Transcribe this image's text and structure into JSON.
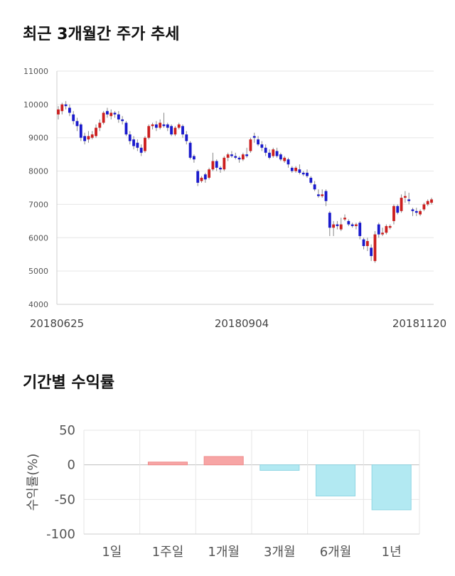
{
  "sections": {
    "price_title": "최근 3개월간 주가 추세",
    "return_title": "기간별 수익률"
  },
  "colors": {
    "up": "#cc1f1f",
    "down": "#1a1acc",
    "positive_bar": "#f7a5a5",
    "negative_bar": "#b2e9f2",
    "grid": "#e6e6e6"
  },
  "chart_data": [
    {
      "type": "candlestick",
      "title": "",
      "ylim": [
        4000,
        11000
      ],
      "yticks": [
        "11000",
        "10000",
        "9000",
        "8000",
        "7000",
        "6000",
        "5000",
        "4000"
      ],
      "xtick_labels": [
        "20180625",
        "20180904",
        "20181120"
      ],
      "grid": true,
      "candles": [
        {
          "o": 9700,
          "c": 9850,
          "h": 9950,
          "l": 9550
        },
        {
          "o": 9800,
          "c": 10000,
          "h": 10050,
          "l": 9700
        },
        {
          "o": 10000,
          "c": 9950,
          "h": 10100,
          "l": 9850
        },
        {
          "o": 9900,
          "c": 9750,
          "h": 10000,
          "l": 9650
        },
        {
          "o": 9700,
          "c": 9500,
          "h": 9800,
          "l": 9400
        },
        {
          "o": 9500,
          "c": 9350,
          "h": 9600,
          "l": 9200
        },
        {
          "o": 9400,
          "c": 9000,
          "h": 9450,
          "l": 8900
        },
        {
          "o": 9050,
          "c": 8900,
          "h": 9150,
          "l": 8800
        },
        {
          "o": 8950,
          "c": 9050,
          "h": 9200,
          "l": 8850
        },
        {
          "o": 9000,
          "c": 9100,
          "h": 9200,
          "l": 8950
        },
        {
          "o": 9050,
          "c": 9300,
          "h": 9400,
          "l": 9000
        },
        {
          "o": 9300,
          "c": 9450,
          "h": 9550,
          "l": 9200
        },
        {
          "o": 9450,
          "c": 9750,
          "h": 9800,
          "l": 9400
        },
        {
          "o": 9800,
          "c": 9700,
          "h": 9900,
          "l": 9600
        },
        {
          "o": 9650,
          "c": 9750,
          "h": 9850,
          "l": 9550
        },
        {
          "o": 9750,
          "c": 9700,
          "h": 9800,
          "l": 9600
        },
        {
          "o": 9700,
          "c": 9550,
          "h": 9800,
          "l": 9450
        },
        {
          "o": 9550,
          "c": 9500,
          "h": 9650,
          "l": 9400
        },
        {
          "o": 9450,
          "c": 9100,
          "h": 9500,
          "l": 9050
        },
        {
          "o": 9100,
          "c": 8900,
          "h": 9200,
          "l": 8800
        },
        {
          "o": 8950,
          "c": 8750,
          "h": 9050,
          "l": 8650
        },
        {
          "o": 8850,
          "c": 8700,
          "h": 8950,
          "l": 8600
        },
        {
          "o": 8700,
          "c": 8550,
          "h": 8800,
          "l": 8450
        },
        {
          "o": 8600,
          "c": 9000,
          "h": 9050,
          "l": 8550
        },
        {
          "o": 9000,
          "c": 9350,
          "h": 9400,
          "l": 8950
        },
        {
          "o": 9350,
          "c": 9400,
          "h": 9450,
          "l": 9250
        },
        {
          "o": 9400,
          "c": 9300,
          "h": 9500,
          "l": 9200
        },
        {
          "o": 9300,
          "c": 9450,
          "h": 9550,
          "l": 9250
        },
        {
          "o": 9400,
          "c": 9350,
          "h": 9750,
          "l": 9300
        },
        {
          "o": 9400,
          "c": 9300,
          "h": 9450,
          "l": 9200
        },
        {
          "o": 9350,
          "c": 9100,
          "h": 9400,
          "l": 9050
        },
        {
          "o": 9100,
          "c": 9300,
          "h": 9350,
          "l": 9050
        },
        {
          "o": 9300,
          "c": 9400,
          "h": 9450,
          "l": 9250
        },
        {
          "o": 9350,
          "c": 9100,
          "h": 9400,
          "l": 9000
        },
        {
          "o": 9100,
          "c": 8900,
          "h": 9200,
          "l": 8800
        },
        {
          "o": 8850,
          "c": 8400,
          "h": 8900,
          "l": 8350
        },
        {
          "o": 8450,
          "c": 8350,
          "h": 8500,
          "l": 8250
        },
        {
          "o": 8000,
          "c": 7650,
          "h": 8050,
          "l": 7550
        },
        {
          "o": 7700,
          "c": 7800,
          "h": 7850,
          "l": 7650
        },
        {
          "o": 7900,
          "c": 7750,
          "h": 7950,
          "l": 7650
        },
        {
          "o": 7800,
          "c": 8050,
          "h": 8100,
          "l": 7750
        },
        {
          "o": 8050,
          "c": 8300,
          "h": 8550,
          "l": 8000
        },
        {
          "o": 8300,
          "c": 8100,
          "h": 8350,
          "l": 8000
        },
        {
          "o": 8100,
          "c": 8050,
          "h": 8150,
          "l": 7950
        },
        {
          "o": 8050,
          "c": 8400,
          "h": 8450,
          "l": 8000
        },
        {
          "o": 8400,
          "c": 8500,
          "h": 8550,
          "l": 8300
        },
        {
          "o": 8500,
          "c": 8450,
          "h": 8600,
          "l": 8400
        },
        {
          "o": 8450,
          "c": 8400,
          "h": 8550,
          "l": 8350
        },
        {
          "o": 8400,
          "c": 8350,
          "h": 8450,
          "l": 8250
        },
        {
          "o": 8350,
          "c": 8500,
          "h": 8550,
          "l": 8300
        },
        {
          "o": 8500,
          "c": 8450,
          "h": 8700,
          "l": 8400
        },
        {
          "o": 8600,
          "c": 8950,
          "h": 9000,
          "l": 8550
        },
        {
          "o": 9050,
          "c": 9000,
          "h": 9150,
          "l": 8850
        },
        {
          "o": 8950,
          "c": 8800,
          "h": 9050,
          "l": 8750
        },
        {
          "o": 8800,
          "c": 8700,
          "h": 8900,
          "l": 8600
        },
        {
          "o": 8700,
          "c": 8550,
          "h": 8800,
          "l": 8450
        },
        {
          "o": 8550,
          "c": 8400,
          "h": 8650,
          "l": 8350
        },
        {
          "o": 8450,
          "c": 8650,
          "h": 8700,
          "l": 8400
        },
        {
          "o": 8600,
          "c": 8450,
          "h": 8700,
          "l": 8400
        },
        {
          "o": 8500,
          "c": 8350,
          "h": 8550,
          "l": 8300
        },
        {
          "o": 8300,
          "c": 8400,
          "h": 8450,
          "l": 8250
        },
        {
          "o": 8350,
          "c": 8200,
          "h": 8400,
          "l": 8100
        },
        {
          "o": 8100,
          "c": 8000,
          "h": 8150,
          "l": 7950
        },
        {
          "o": 8000,
          "c": 8100,
          "h": 8150,
          "l": 7950
        },
        {
          "o": 8050,
          "c": 7950,
          "h": 8200,
          "l": 7900
        },
        {
          "o": 7950,
          "c": 7900,
          "h": 8000,
          "l": 7850
        },
        {
          "o": 7950,
          "c": 7850,
          "h": 8050,
          "l": 7800
        },
        {
          "o": 7800,
          "c": 7650,
          "h": 7850,
          "l": 7600
        },
        {
          "o": 7600,
          "c": 7450,
          "h": 7700,
          "l": 7400
        },
        {
          "o": 7300,
          "c": 7250,
          "h": 7450,
          "l": 7200
        },
        {
          "o": 7250,
          "c": 7300,
          "h": 7450,
          "l": 7200
        },
        {
          "o": 7400,
          "c": 7100,
          "h": 7450,
          "l": 6950
        },
        {
          "o": 6750,
          "c": 6300,
          "h": 6800,
          "l": 6050
        },
        {
          "o": 6300,
          "c": 6400,
          "h": 6500,
          "l": 6050
        },
        {
          "o": 6400,
          "c": 6350,
          "h": 6500,
          "l": 6250
        },
        {
          "o": 6250,
          "c": 6400,
          "h": 6600,
          "l": 6200
        },
        {
          "o": 6550,
          "c": 6600,
          "h": 6700,
          "l": 6500
        },
        {
          "o": 6500,
          "c": 6400,
          "h": 6550,
          "l": 6350
        },
        {
          "o": 6400,
          "c": 6350,
          "h": 6450,
          "l": 6300
        },
        {
          "o": 6350,
          "c": 6400,
          "h": 6450,
          "l": 6250
        },
        {
          "o": 6450,
          "c": 6050,
          "h": 6500,
          "l": 5950
        },
        {
          "o": 5950,
          "c": 5750,
          "h": 6000,
          "l": 5650
        },
        {
          "o": 5750,
          "c": 5900,
          "h": 6000,
          "l": 5600
        },
        {
          "o": 5700,
          "c": 5450,
          "h": 5800,
          "l": 5300
        },
        {
          "o": 5300,
          "c": 6100,
          "h": 6200,
          "l": 5250
        },
        {
          "o": 6400,
          "c": 6100,
          "h": 6450,
          "l": 6000
        },
        {
          "o": 6100,
          "c": 6150,
          "h": 6300,
          "l": 6050
        },
        {
          "o": 6150,
          "c": 6350,
          "h": 6400,
          "l": 6100
        },
        {
          "o": 6300,
          "c": 6350,
          "h": 6400,
          "l": 6250
        },
        {
          "o": 6500,
          "c": 6950,
          "h": 7000,
          "l": 6400
        },
        {
          "o": 6950,
          "c": 6750,
          "h": 7000,
          "l": 6700
        },
        {
          "o": 6800,
          "c": 7200,
          "h": 7300,
          "l": 6750
        },
        {
          "o": 7200,
          "c": 7250,
          "h": 7400,
          "l": 7050
        },
        {
          "o": 7150,
          "c": 7100,
          "h": 7350,
          "l": 7000
        },
        {
          "o": 6850,
          "c": 6800,
          "h": 6900,
          "l": 6650
        },
        {
          "o": 6800,
          "c": 6750,
          "h": 6900,
          "l": 6650
        },
        {
          "o": 6700,
          "c": 6800,
          "h": 6850,
          "l": 6650
        },
        {
          "o": 6850,
          "c": 7000,
          "h": 7050,
          "l": 6800
        },
        {
          "o": 7000,
          "c": 7100,
          "h": 7150,
          "l": 6950
        },
        {
          "o": 7050,
          "c": 7150,
          "h": 7200,
          "l": 7000
        }
      ]
    },
    {
      "type": "bar",
      "title": "",
      "ylabel": "수익률(%)",
      "ylim": [
        -100,
        50
      ],
      "yticks": [
        "50",
        "0",
        "-50",
        "-100"
      ],
      "categories": [
        "1일",
        "1주일",
        "1개월",
        "3개월",
        "6개월",
        "1년"
      ],
      "values": [
        0,
        4,
        12,
        -8,
        -45,
        -65
      ],
      "grid": true
    }
  ]
}
